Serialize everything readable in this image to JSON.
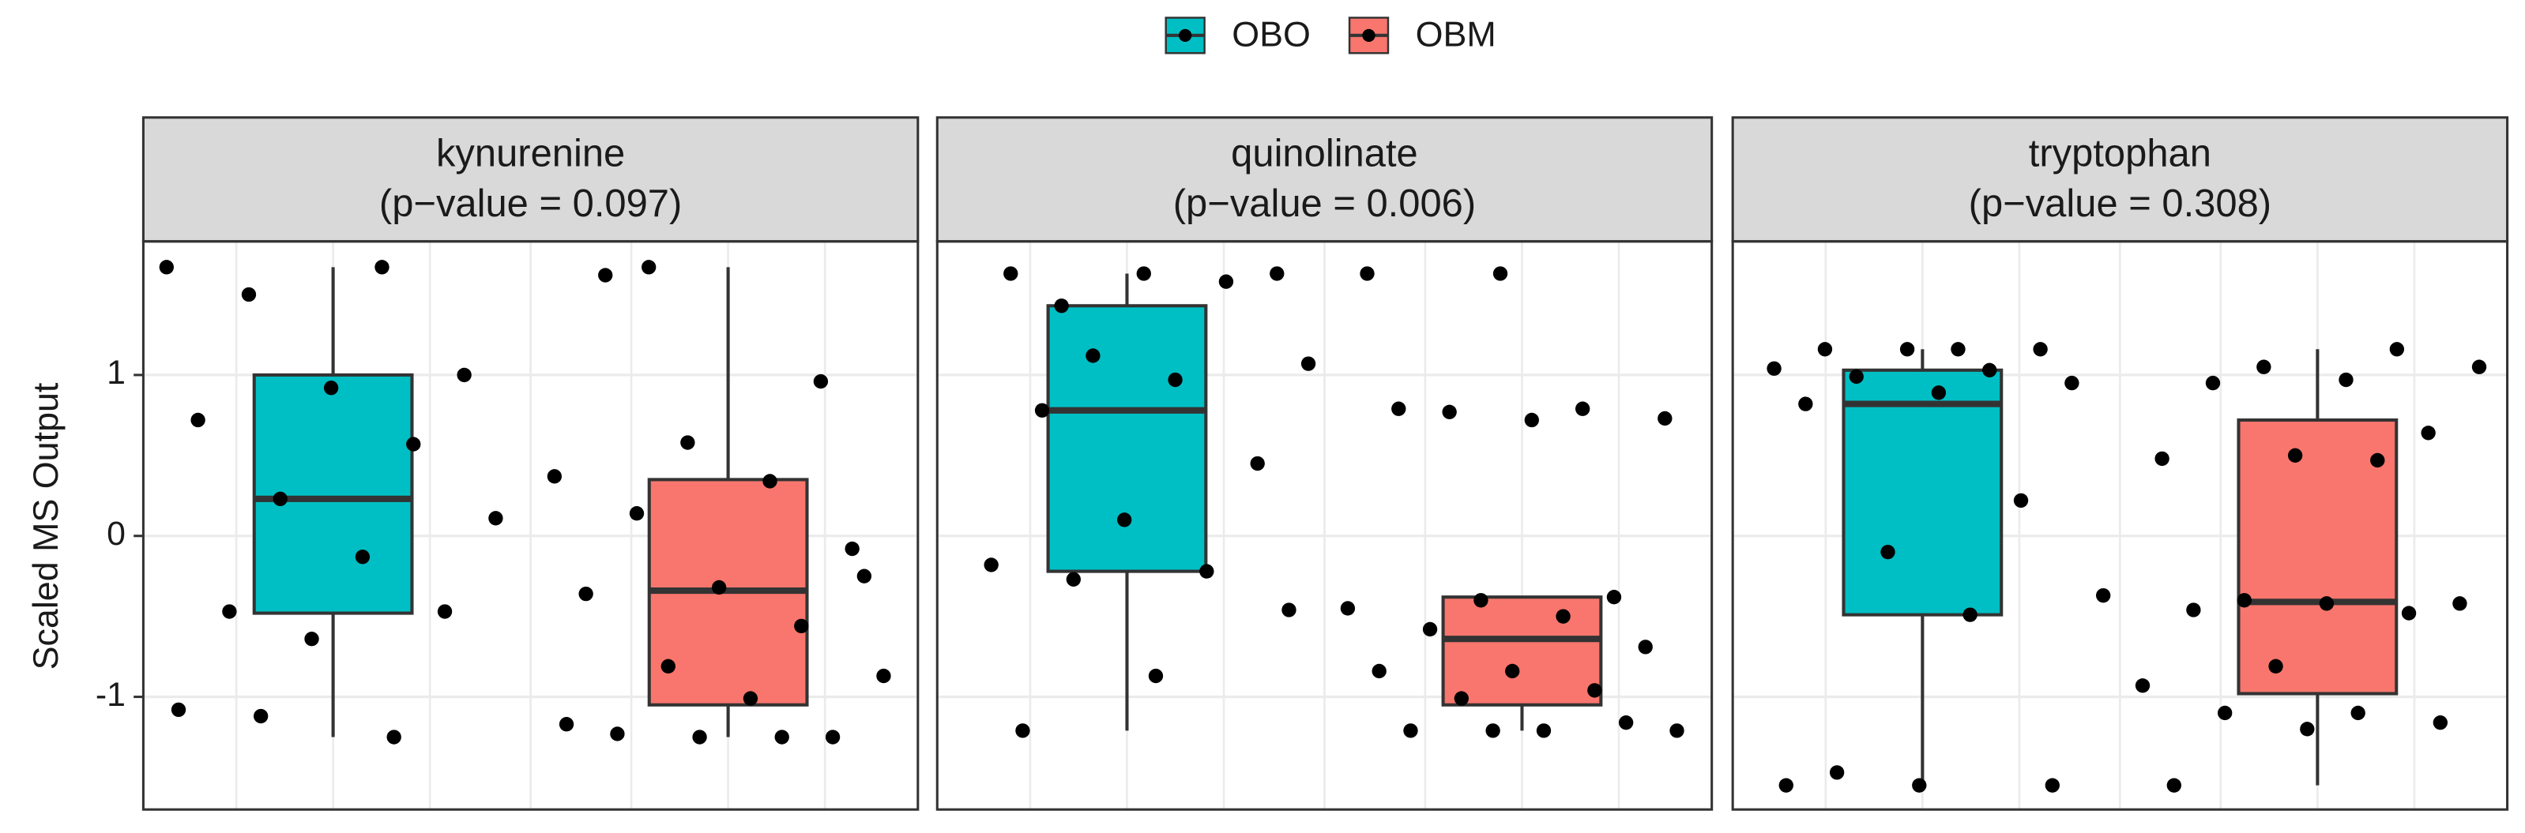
{
  "chart_data": {
    "type": "box",
    "ylabel": "Scaled MS Output",
    "ylim": [
      -1.7,
      1.83
    ],
    "yticks": [
      -1,
      0,
      1
    ],
    "grid": true,
    "legend": "top",
    "series": [
      {
        "name": "OBO",
        "color": "#00bfc4"
      },
      {
        "name": "OBM",
        "color": "#f8766d"
      }
    ],
    "panels": [
      {
        "title": "kynurenine",
        "subtitle": "(p−value = 0.097)",
        "boxes": [
          {
            "whislo": -1.25,
            "q1": -0.48,
            "median": 0.23,
            "q3": 1.0,
            "whishi": 1.67,
            "points": [
              1.67,
              1.67,
              1.5,
              1.0,
              0.92,
              0.72,
              0.57,
              0.23,
              0.11,
              -0.13,
              -0.47,
              -0.47,
              -0.64,
              -1.08,
              -1.25,
              -1.12
            ]
          },
          {
            "whislo": -1.25,
            "q1": -1.05,
            "median": -0.34,
            "q3": 0.35,
            "whishi": 1.67,
            "points": [
              1.62,
              0.96,
              0.58,
              0.37,
              0.34,
              0.14,
              -0.08,
              -0.32,
              -0.36,
              -0.56,
              -0.81,
              -0.87,
              -1.01,
              -1.23,
              -1.25,
              -1.25,
              -1.17,
              -1.25,
              1.67,
              -0.25
            ]
          }
        ]
      },
      {
        "title": "quinolinate",
        "subtitle": "(p−value = 0.006)",
        "boxes": [
          {
            "whislo": -1.21,
            "q1": -0.22,
            "median": 0.78,
            "q3": 1.43,
            "whishi": 1.63,
            "points": [
              1.43,
              1.63,
              1.63,
              1.63,
              1.58,
              1.12,
              1.07,
              0.97,
              0.78,
              0.45,
              0.1,
              -0.18,
              -0.22,
              -0.27,
              -0.46,
              -0.87,
              -1.21
            ]
          },
          {
            "whislo": -1.21,
            "q1": -1.05,
            "median": -0.64,
            "q3": -0.38,
            "whishi": -0.38,
            "points": [
              1.63,
              1.63,
              0.79,
              0.77,
              0.73,
              0.72,
              0.79,
              -0.38,
              -0.4,
              -0.45,
              -0.5,
              -0.58,
              -0.69,
              -0.84,
              -0.84,
              -0.96,
              -1.01,
              -1.21,
              -1.21,
              -1.21,
              -1.16,
              -1.21
            ]
          }
        ]
      },
      {
        "title": "tryptophan",
        "subtitle": "(p−value = 0.308)",
        "boxes": [
          {
            "whislo": -1.55,
            "q1": -0.49,
            "median": 0.82,
            "q3": 1.03,
            "whishi": 1.16,
            "points": [
              1.16,
              1.16,
              1.16,
              1.16,
              1.04,
              1.03,
              0.99,
              0.95,
              0.89,
              0.82,
              0.22,
              -0.1,
              -0.37,
              -0.49,
              -1.47,
              -1.55,
              -1.55,
              -1.55
            ]
          },
          {
            "whislo": -1.55,
            "q1": -0.98,
            "median": -0.41,
            "q3": 0.72,
            "whishi": 1.16,
            "points": [
              1.16,
              1.05,
              1.05,
              0.97,
              0.95,
              0.64,
              0.5,
              0.48,
              0.47,
              -0.4,
              -0.42,
              -0.42,
              -0.46,
              -0.48,
              -0.81,
              -0.93,
              -1.1,
              -1.1,
              -1.16,
              -1.2,
              -1.55
            ]
          }
        ]
      }
    ]
  }
}
